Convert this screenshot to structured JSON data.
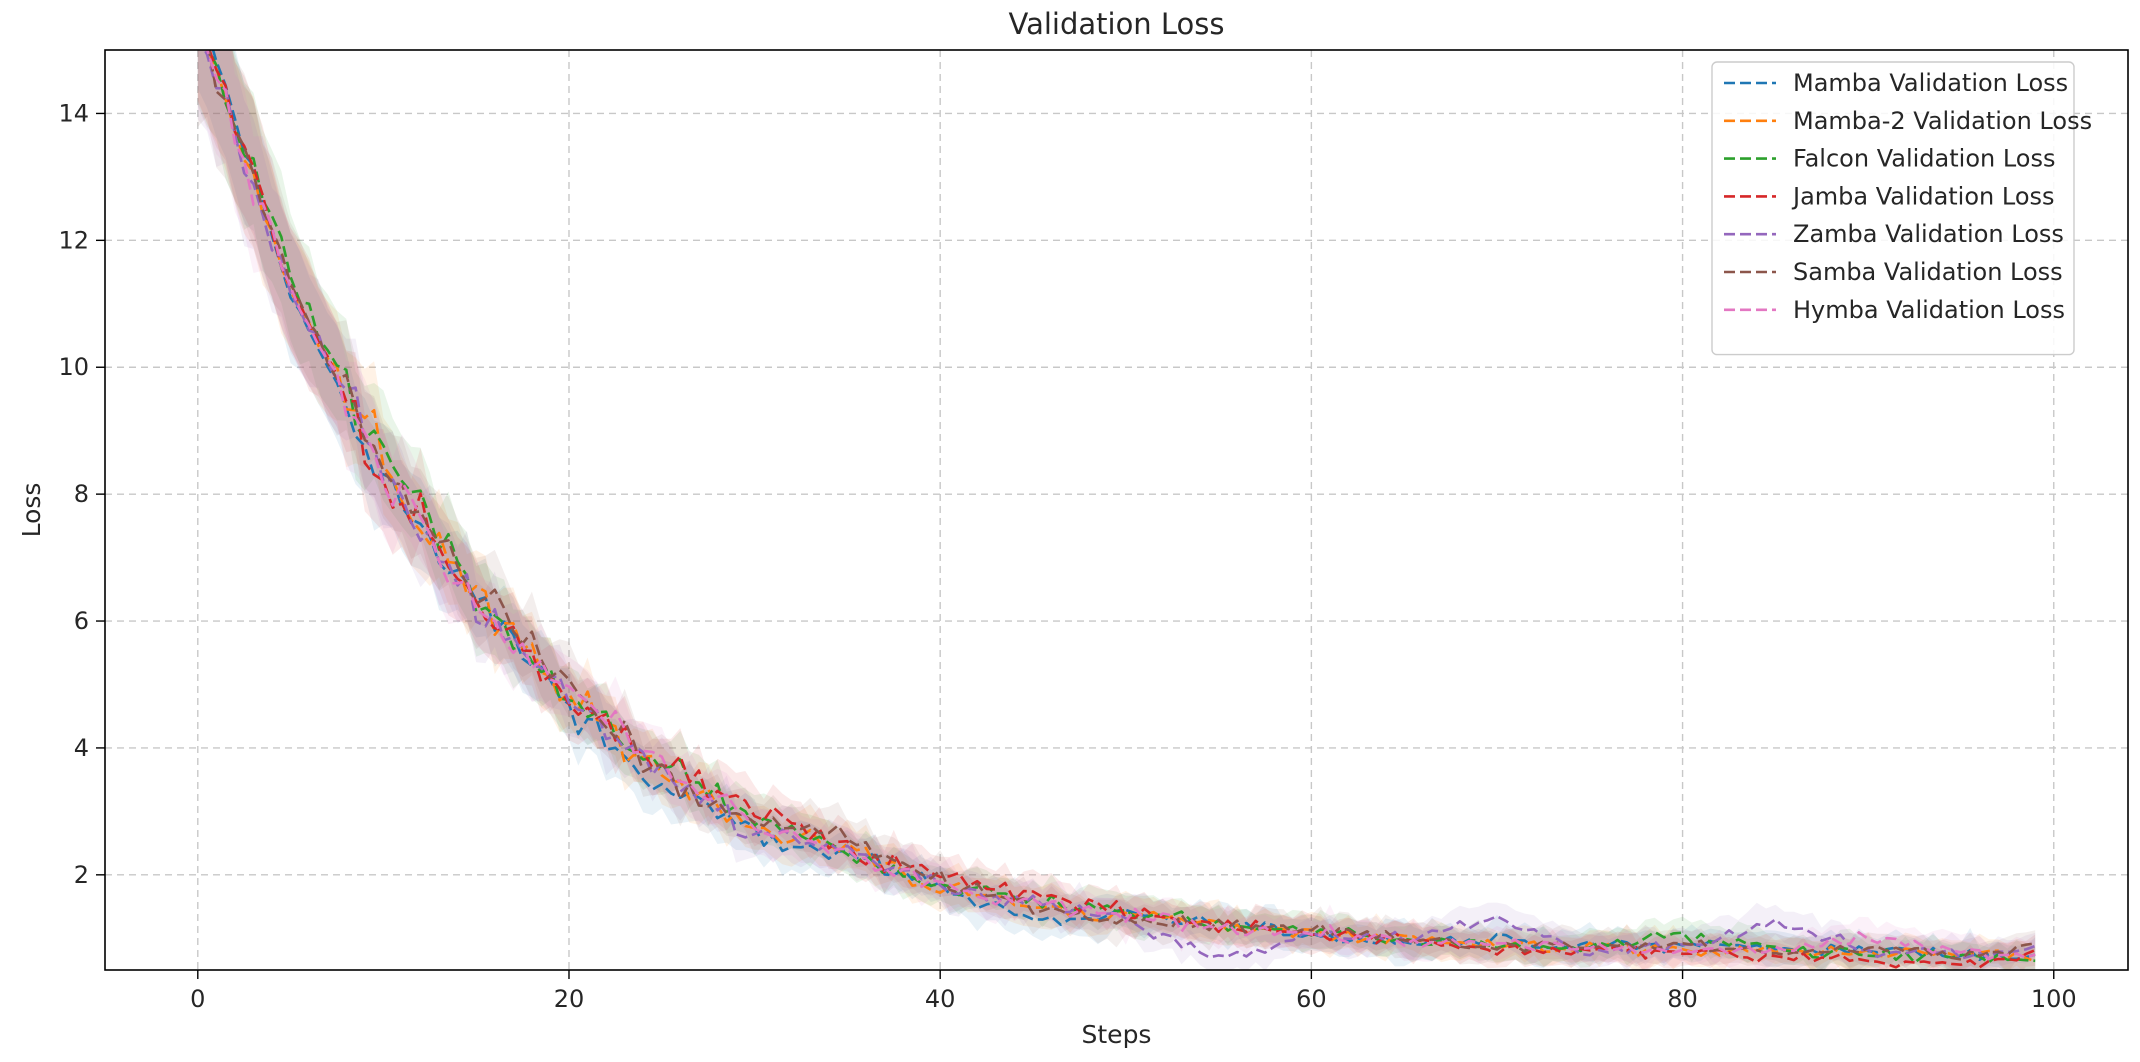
{
  "chart_data": {
    "type": "line",
    "title": "Validation Loss",
    "xlabel": "Steps",
    "ylabel": "Loss",
    "xlim": [
      -5,
      104
    ],
    "ylim": [
      0.5,
      15.0
    ],
    "xticks": [
      0,
      20,
      40,
      60,
      80,
      100
    ],
    "yticks": [
      2,
      4,
      6,
      8,
      10,
      12,
      14
    ],
    "grid": true,
    "grid_style": "dashed",
    "legend_position": "top-right",
    "line_style": "dashed",
    "shaded_band": true,
    "x_range": [
      0,
      99
    ],
    "trend": {
      "x": [
        0,
        5,
        10,
        15,
        20,
        25,
        30,
        35,
        40,
        45,
        50,
        55,
        60,
        65,
        70,
        75,
        80,
        85,
        90,
        95,
        99
      ],
      "y": [
        15.5,
        11.3,
        8.4,
        6.3,
        4.8,
        3.6,
        2.8,
        2.3,
        1.8,
        1.55,
        1.35,
        1.2,
        1.1,
        1.0,
        0.9,
        0.85,
        0.85,
        0.8,
        0.78,
        0.75,
        0.72
      ]
    },
    "series": [
      {
        "name": "Mamba Validation Loss",
        "color": "#1f77b4",
        "values": [
          15.7,
          11.2,
          8.2,
          6.4,
          4.6,
          3.3,
          2.7,
          2.3,
          1.8,
          1.3,
          1.4,
          1.2,
          1.05,
          0.95,
          0.95,
          0.85,
          0.9,
          0.85,
          0.8,
          0.75,
          0.72
        ]
      },
      {
        "name": "Mamba-2 Validation Loss",
        "color": "#ff7f0e",
        "values": [
          15.4,
          11.3,
          8.5,
          6.3,
          4.8,
          3.6,
          2.8,
          2.4,
          1.8,
          1.5,
          1.35,
          1.2,
          1.1,
          1.0,
          0.9,
          0.85,
          0.8,
          0.8,
          0.78,
          0.75,
          0.7
        ]
      },
      {
        "name": "Falcon Validation Loss",
        "color": "#2ca02c",
        "values": [
          15.5,
          11.4,
          8.6,
          6.4,
          4.7,
          3.7,
          2.9,
          2.3,
          1.85,
          1.6,
          1.4,
          1.25,
          1.1,
          1.0,
          0.9,
          0.85,
          1.1,
          0.8,
          0.75,
          0.7,
          0.65
        ]
      },
      {
        "name": "Jamba Validation Loss",
        "color": "#d62728",
        "values": [
          15.6,
          11.3,
          8.4,
          6.2,
          4.9,
          3.8,
          3.0,
          2.4,
          1.95,
          1.7,
          1.4,
          1.2,
          1.1,
          1.0,
          0.8,
          0.8,
          0.8,
          0.7,
          0.65,
          0.6,
          0.7
        ]
      },
      {
        "name": "Zamba Validation Loss",
        "color": "#9467bd",
        "values": [
          15.3,
          11.2,
          8.3,
          6.3,
          4.8,
          3.6,
          2.7,
          2.4,
          1.8,
          1.6,
          1.3,
          0.65,
          1.1,
          1.0,
          1.3,
          0.8,
          0.85,
          1.25,
          0.8,
          0.75,
          0.8
        ]
      },
      {
        "name": "Samba Validation Loss",
        "color": "#8c564b",
        "values": [
          15.5,
          11.3,
          8.5,
          6.5,
          5.0,
          3.6,
          2.8,
          2.6,
          1.9,
          1.5,
          1.3,
          1.2,
          1.1,
          1.0,
          0.85,
          0.9,
          0.85,
          0.8,
          0.85,
          0.75,
          0.9
        ]
      },
      {
        "name": "Hymba Validation Loss",
        "color": "#e377c2",
        "values": [
          15.4,
          11.2,
          8.4,
          6.2,
          4.9,
          3.7,
          2.8,
          2.3,
          1.8,
          1.5,
          1.35,
          1.15,
          1.1,
          0.95,
          0.9,
          0.85,
          0.8,
          0.85,
          1.0,
          0.8,
          0.75
        ]
      }
    ]
  }
}
